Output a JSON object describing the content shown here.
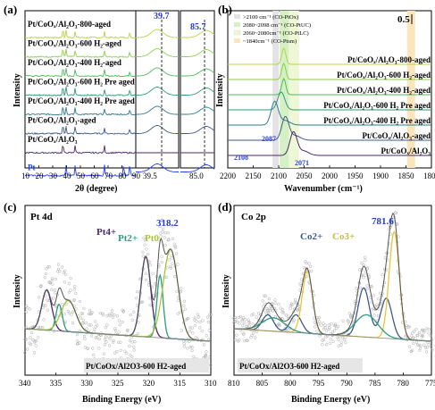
{
  "panels": {
    "a": {
      "tag": "(a)",
      "xlabel": "2θ (degree)",
      "ylabel": "Intensity",
      "xticks": [
        "10",
        "20",
        "30",
        "40",
        "50",
        "60",
        "70",
        "80",
        "90"
      ],
      "zoom1_ticks": [
        "39.5"
      ],
      "zoom2_ticks": [
        "85.0"
      ],
      "peak1": "39.7",
      "peak2": "85.7",
      "traces": [
        {
          "label": "Pt/CoOx/Al2O3-800-aged",
          "color": "#b8d444"
        },
        {
          "label": "Pt/CoOx/Al2O3-600 H2-aged",
          "color": "#8fcf4d"
        },
        {
          "label": "Pt/CoOx/Al2O3-400 H2-aged",
          "color": "#4fbd5a"
        },
        {
          "label": "Pt/CoOx/Al2O3-600 H2 Pre aged",
          "color": "#2e9c7b"
        },
        {
          "label": "Pt/CoOx/Al2O3-400 H2 Pre aged",
          "color": "#2f7d8e"
        },
        {
          "label": "Pt/CoOx/Al2O3-aged",
          "color": "#3f5a8c"
        },
        {
          "label": "Pt/CoOx/Al2O3",
          "color": "#4a2a6a"
        },
        {
          "label": "Pt",
          "color": "#1f3cff"
        }
      ]
    },
    "b": {
      "tag": "(b)",
      "xlabel": "Wavenumber (cm⁻¹)",
      "ylabel": "Intensity",
      "scale": "0.5",
      "xticks": [
        "2200",
        "2150",
        "2100",
        "2050",
        "2000",
        "1950",
        "1900",
        "1850",
        "1800"
      ],
      "legend": [
        ">2100 cm⁻¹ (CO-PtOx)",
        "2080~2098 cm⁻¹ (CO-PtUC)",
        "2060~2080cm⁻¹ (CO-PtLC)",
        "~1840cm⁻¹ (CO-Ptsm)"
      ],
      "peaks": [
        "2087",
        "2108",
        "2071"
      ],
      "traces": [
        {
          "label": "Pt/CoOx/Al2O3-800-aged",
          "color": "#b8d444"
        },
        {
          "label": "Pt/CoOx/Al2O3-600 H2-aged",
          "color": "#8fcf4d"
        },
        {
          "label": "Pt/CoOx/Al2O3-400 H2-aged",
          "color": "#4fbd5a"
        },
        {
          "label": "Pt/CoOx/Al2O3-600 H2 Pre aged",
          "color": "#2e9c7b"
        },
        {
          "label": "Pt/CoOx/Al2O3-400 H2 Pre aged",
          "color": "#2f7d8e"
        },
        {
          "label": "Pt/CoOx/Al2O3-aged",
          "color": "#3f5a8c"
        },
        {
          "label": "Pt/CoOx/Al2O3",
          "color": "#4a2a6a"
        }
      ]
    },
    "c": {
      "tag": "(c)",
      "title": "Pt 4d",
      "xlabel": "Binding Energy (eV)",
      "ylabel": "Intensity",
      "xticks": [
        "340",
        "335",
        "330",
        "325",
        "320",
        "315",
        "310"
      ],
      "peak": "318.2",
      "species": [
        "Pt4+",
        "Pt2+",
        "Pt0"
      ],
      "sample": "Pt/CoOx/Al2O3-600 H2-aged"
    },
    "d": {
      "tag": "(d)",
      "title": "Co 2p",
      "xlabel": "Binding Energy (eV)",
      "ylabel": "Intensity",
      "xticks": [
        "810",
        "805",
        "800",
        "795",
        "790",
        "785",
        "780",
        "775"
      ],
      "peak": "781.6",
      "species": [
        "Co2+",
        "Co3+"
      ],
      "sample": "Pt/CoOx/Al2O3-600 H2-aged"
    }
  },
  "chart_data": [
    {
      "type": "line",
      "panel": "a",
      "xlabel": "2θ (degree)",
      "ylabel": "Intensity",
      "xlim": [
        10,
        90
      ],
      "series": [
        {
          "name": "Pt/CoOx/Al2O3-800-aged",
          "peaks_x": [
            37.4,
            39.7,
            46.2,
            67.4,
            85.7
          ]
        },
        {
          "name": "Pt/CoOx/Al2O3-600 H2-aged",
          "peaks_x": [
            37.4,
            39.7,
            46.2,
            67.4,
            85.7
          ]
        },
        {
          "name": "Pt/CoOx/Al2O3-400 H2-aged",
          "peaks_x": [
            37.4,
            39.7,
            46.2,
            67.4,
            85.7
          ]
        },
        {
          "name": "Pt/CoOx/Al2O3-600 H2 Pre aged",
          "peaks_x": [
            37.4,
            39.7,
            46.2,
            67.4,
            85.7
          ]
        },
        {
          "name": "Pt/CoOx/Al2O3-400 H2 Pre aged",
          "peaks_x": [
            37.4,
            39.7,
            46.2,
            67.4,
            85.7
          ]
        },
        {
          "name": "Pt/CoOx/Al2O3-aged",
          "peaks_x": [
            37.4,
            39.7,
            46.2,
            67.4,
            85.7
          ]
        },
        {
          "name": "Pt/CoOx/Al2O3",
          "peaks_x": [
            37.4,
            46.2,
            67.4
          ]
        },
        {
          "name": "Pt",
          "peaks_x": [
            39.7,
            46.2,
            67.4,
            81.2,
            85.7
          ]
        }
      ]
    },
    {
      "type": "line",
      "panel": "b",
      "xlabel": "Wavenumber (cm⁻¹)",
      "ylabel": "Intensity",
      "xlim": [
        2200,
        1800
      ],
      "series": [
        {
          "name": "Pt/CoOx/Al2O3-800-aged",
          "peak_x": 2090
        },
        {
          "name": "Pt/CoOx/Al2O3-600 H2-aged",
          "peak_x": 2090
        },
        {
          "name": "Pt/CoOx/Al2O3-400 H2-aged",
          "peak_x": 2090
        },
        {
          "name": "Pt/CoOx/Al2O3-600 H2 Pre aged",
          "peak_x": 2095
        },
        {
          "name": "Pt/CoOx/Al2O3-400 H2 Pre aged",
          "peak_x": 2108
        },
        {
          "name": "Pt/CoOx/Al2O3-aged",
          "peak_x": 2087
        },
        {
          "name": "Pt/CoOx/Al2O3",
          "peak_x": 2071
        }
      ]
    },
    {
      "type": "scatter",
      "panel": "c",
      "xlabel": "Binding Energy (eV)",
      "ylabel": "Intensity",
      "xlim": [
        340,
        310
      ],
      "fit_peaks": [
        {
          "species": "Pt4+",
          "x": [
            336.5,
            320.5
          ]
        },
        {
          "species": "Pt2+",
          "x": [
            334.5,
            318.2
          ]
        },
        {
          "species": "Pt0",
          "x": [
            333.0,
            316.5
          ]
        }
      ]
    },
    {
      "type": "scatter",
      "panel": "d",
      "xlabel": "Binding Energy (eV)",
      "ylabel": "Intensity",
      "xlim": [
        810,
        775
      ],
      "fit_peaks": [
        {
          "species": "Co2+",
          "x": [
            783.0,
            799.0,
            787.0,
            804.0
          ]
        },
        {
          "species": "Co3+",
          "x": [
            781.6,
            797.0
          ]
        }
      ]
    }
  ]
}
